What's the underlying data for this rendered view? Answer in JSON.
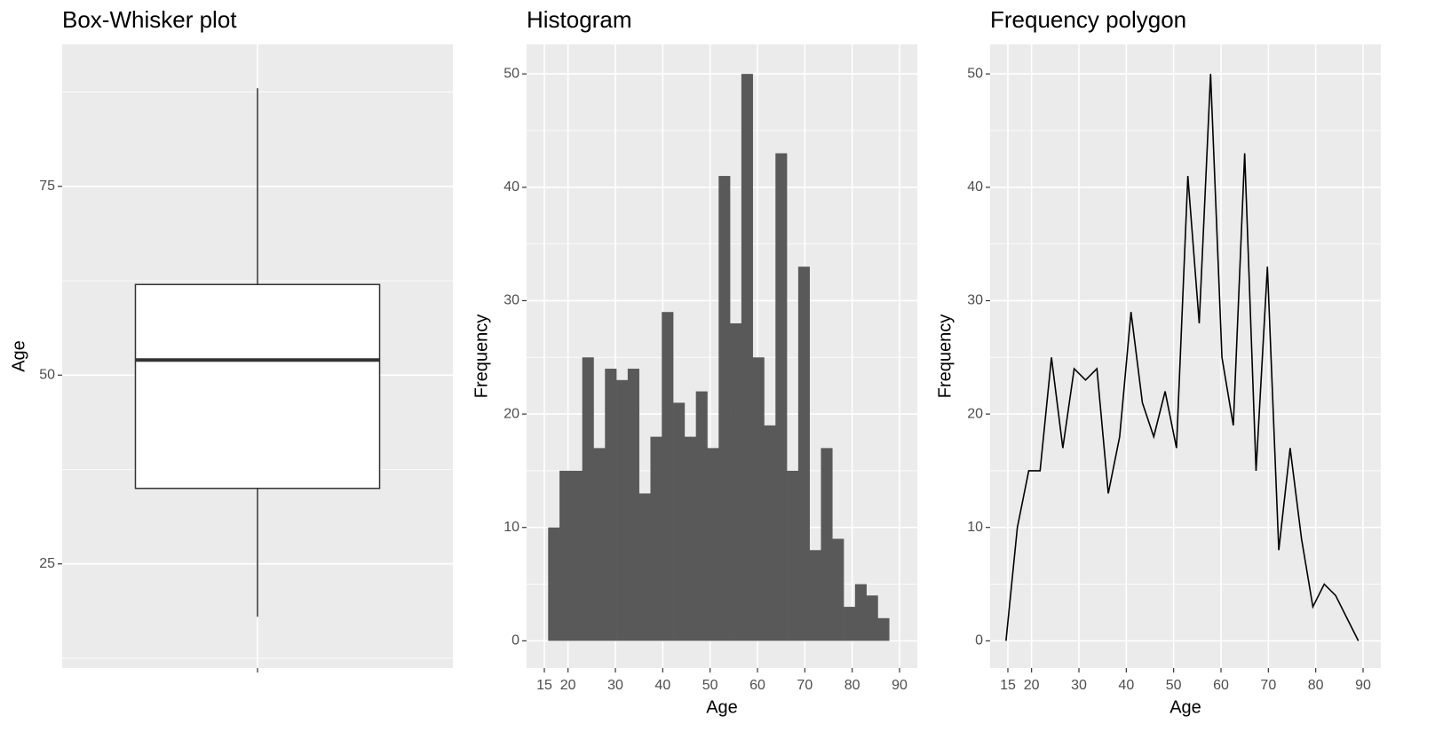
{
  "chart_data": [
    {
      "type": "box",
      "title": "Box-Whisker plot",
      "ylabel": "Age",
      "whisker_low": 18,
      "q1": 35,
      "median": 52,
      "q3": 62,
      "whisker_high": 88,
      "ylim": [
        11.2,
        93.8
      ],
      "yticks": [
        25,
        50,
        75
      ],
      "color": "#ffffff",
      "grid": true
    },
    {
      "type": "histogram",
      "title": "Histogram",
      "xlabel": "Age",
      "ylabel": "Frequency",
      "bins": [
        15.8,
        18.2,
        20.6,
        23,
        25.4,
        27.8,
        30.2,
        32.6,
        35,
        37.4,
        39.8,
        42.2,
        44.6,
        47,
        49.4,
        51.8,
        54.2,
        56.6,
        59,
        61.4,
        63.8,
        66.2,
        68.6,
        71,
        73.4,
        75.8,
        78.2,
        80.6,
        83,
        85.4,
        87.8
      ],
      "counts": [
        10,
        15,
        15,
        25,
        17,
        24,
        23,
        24,
        13,
        18,
        29,
        21,
        18,
        22,
        17,
        41,
        28,
        50,
        25,
        19,
        43,
        15,
        33,
        8,
        17,
        9,
        3,
        5,
        4,
        2
      ],
      "color": "#595959",
      "xlim": [
        11.25,
        93.75
      ],
      "ylim": [
        -2.4,
        52.6
      ],
      "xticks": [
        15,
        20,
        30,
        40,
        50,
        60,
        70,
        80,
        90
      ],
      "yticks": [
        0,
        10,
        20,
        30,
        40,
        50
      ],
      "grid": true
    },
    {
      "type": "line",
      "title": "Frequency polygon",
      "xlabel": "Age",
      "ylabel": "Frequency",
      "x": [
        14.6,
        17,
        19.4,
        21.8,
        24.2,
        26.6,
        29,
        31.4,
        33.8,
        36.2,
        38.6,
        41,
        43.4,
        45.8,
        48.2,
        50.6,
        53,
        55.4,
        57.8,
        60.2,
        62.6,
        65,
        67.4,
        69.8,
        72.2,
        74.6,
        77,
        79.4,
        81.8,
        84.2,
        86.6,
        89
      ],
      "values": [
        0,
        10,
        15,
        15,
        25,
        17,
        24,
        23,
        24,
        13,
        18,
        29,
        21,
        18,
        22,
        17,
        41,
        28,
        50,
        25,
        19,
        43,
        15,
        33,
        8,
        17,
        9,
        3,
        5,
        4,
        2,
        0
      ],
      "color": "#000000",
      "xlim": [
        11.25,
        93.75
      ],
      "ylim": [
        -2.4,
        52.6
      ],
      "xticks": [
        15,
        20,
        30,
        40,
        50,
        60,
        70,
        80,
        90
      ],
      "yticks": [
        0,
        10,
        20,
        30,
        40,
        50
      ],
      "grid": true
    }
  ]
}
